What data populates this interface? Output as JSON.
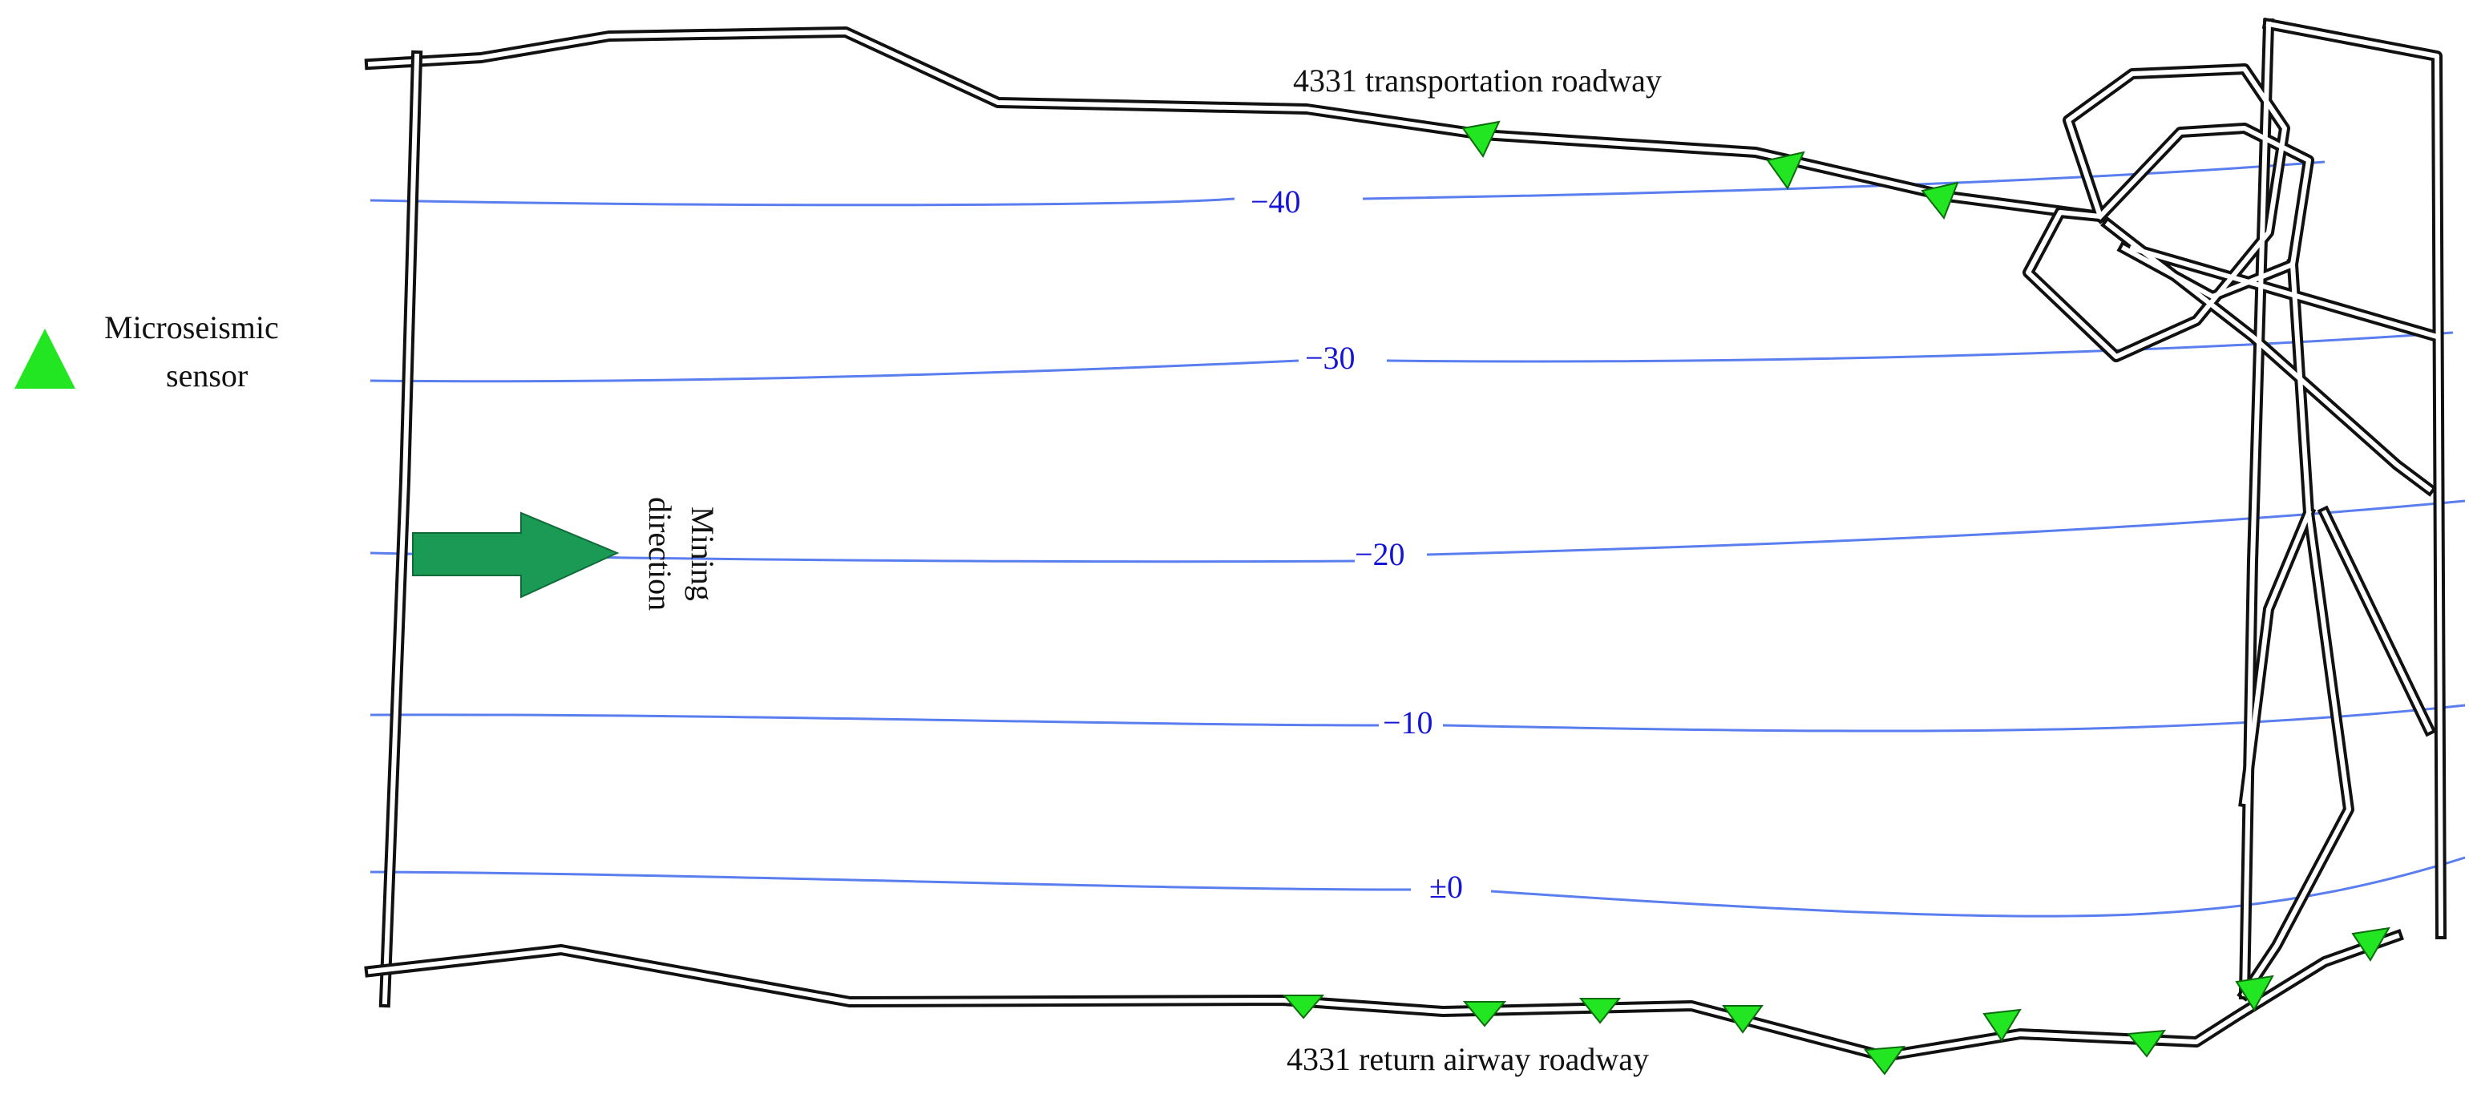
{
  "legend": {
    "sensor_label_line1": "Microseismic",
    "sensor_label_line2": "sensor",
    "sensor_color": "#22e622"
  },
  "mining_direction": {
    "label_line1": "Mining",
    "label_line2": "direction",
    "arrow_color": "#1a9a55"
  },
  "roadways": {
    "transportation_label": "4331 transportation roadway",
    "return_airway_label": "4331 return airway roadway"
  },
  "contours": {
    "color": "#5a7df0",
    "labels": [
      "−40",
      "−30",
      "−20",
      "−10",
      "±0"
    ]
  }
}
